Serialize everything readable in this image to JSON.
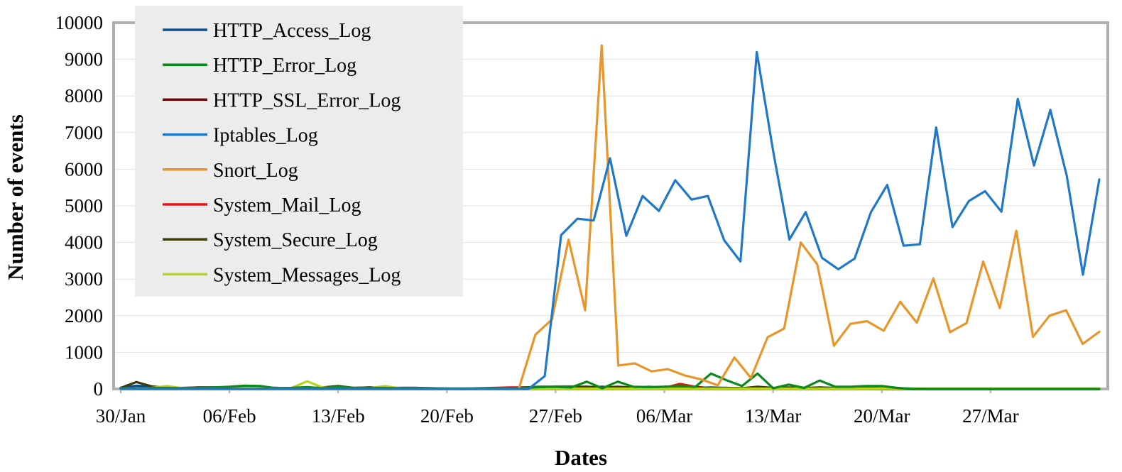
{
  "chart_data": {
    "type": "line",
    "title": "",
    "xlabel": "Dates",
    "ylabel": "Number of events",
    "ylim": [
      0,
      10000
    ],
    "yticks": [
      0,
      1000,
      2000,
      3000,
      4000,
      5000,
      6000,
      7000,
      8000,
      9000,
      10000
    ],
    "xlim": [
      "30/Jan",
      "03/Apr"
    ],
    "xticks": [
      "30/Jan",
      "06/Feb",
      "13/Feb",
      "20/Feb",
      "27/Feb",
      "06/Mar",
      "13/Mar",
      "20/Mar",
      "27/Mar"
    ],
    "x_start_day": "30/Jan",
    "grid": "horizontal",
    "legend_position": "top-left",
    "series": [
      {
        "name": "HTTP_Access_Log",
        "color": "#0b4c8c",
        "values": [
          30,
          90,
          60,
          30,
          20,
          40,
          40,
          30,
          30,
          30,
          30,
          20,
          20,
          30,
          60,
          30,
          40,
          30,
          30,
          30,
          20,
          10,
          0,
          10,
          20,
          20,
          30,
          40,
          60,
          60,
          40,
          60,
          30,
          40,
          30,
          40,
          20,
          30,
          40,
          30,
          20,
          10,
          20,
          20,
          20,
          40,
          30,
          30,
          20,
          10,
          10,
          10,
          0,
          0,
          0,
          0,
          0,
          0,
          0,
          0,
          0,
          0,
          0,
          0
        ]
      },
      {
        "name": "HTTP_Error_Log",
        "color": "#0a8a1a",
        "values": [
          20,
          20,
          30,
          30,
          20,
          30,
          40,
          60,
          90,
          80,
          20,
          30,
          50,
          20,
          60,
          30,
          30,
          30,
          20,
          20,
          10,
          10,
          10,
          10,
          20,
          20,
          30,
          50,
          60,
          40,
          200,
          20,
          200,
          60,
          50,
          60,
          80,
          60,
          420,
          240,
          80,
          420,
          20,
          120,
          30,
          230,
          60,
          60,
          80,
          80,
          30,
          0,
          0,
          0,
          0,
          0,
          0,
          0,
          0,
          0,
          0,
          0,
          0,
          0
        ]
      },
      {
        "name": "HTTP_SSL_Error_Log",
        "color": "#7a0000",
        "values": [
          10,
          10,
          10,
          10,
          10,
          10,
          10,
          10,
          10,
          10,
          10,
          10,
          10,
          10,
          10,
          10,
          10,
          10,
          10,
          10,
          10,
          10,
          10,
          10,
          10,
          10,
          10,
          10,
          10,
          10,
          10,
          10,
          10,
          10,
          10,
          10,
          10,
          10,
          10,
          10,
          10,
          10,
          10,
          10,
          10,
          10,
          10,
          10,
          10,
          10,
          10,
          10,
          10,
          10,
          10,
          10,
          10,
          10,
          10,
          10,
          10,
          10,
          10,
          10
        ]
      },
      {
        "name": "Iptables_Log",
        "color": "#1f78c8",
        "values": [
          0,
          0,
          0,
          0,
          0,
          0,
          0,
          0,
          0,
          0,
          0,
          0,
          0,
          0,
          0,
          0,
          0,
          0,
          0,
          0,
          0,
          0,
          0,
          0,
          0,
          0,
          350,
          4200,
          4650,
          4600,
          6300,
          4180,
          5270,
          4860,
          5700,
          5170,
          5270,
          4060,
          3480,
          9200,
          6500,
          4080,
          4830,
          3580,
          3270,
          3560,
          4830,
          5570,
          3910,
          3950,
          7140,
          4420,
          5130,
          5400,
          4840,
          7920,
          6100,
          7620,
          5830,
          3120,
          5720
        ]
      },
      {
        "name": "Snort_Log",
        "color": "#e8962a",
        "values": [
          0,
          0,
          0,
          0,
          0,
          0,
          0,
          0,
          0,
          0,
          0,
          0,
          0,
          0,
          0,
          0,
          0,
          0,
          0,
          0,
          0,
          0,
          0,
          0,
          0,
          1480,
          1900,
          4080,
          2150,
          9380,
          640,
          700,
          480,
          540,
          370,
          260,
          100,
          860,
          300,
          1410,
          1650,
          4000,
          3400,
          1180,
          1780,
          1850,
          1590,
          2380,
          1810,
          3020,
          1550,
          1800,
          3480,
          2210,
          4320,
          1420,
          2000,
          2150,
          1230,
          1560
        ]
      },
      {
        "name": "System_Mail_Log",
        "color": "#ee1111",
        "values": [
          10,
          20,
          30,
          20,
          10,
          20,
          20,
          10,
          30,
          20,
          10,
          20,
          10,
          20,
          30,
          20,
          10,
          20,
          10,
          10,
          10,
          10,
          10,
          20,
          30,
          40,
          40,
          20,
          20,
          30,
          60,
          30,
          40,
          30,
          60,
          30,
          140,
          60,
          20,
          10,
          10,
          50,
          20,
          10,
          10,
          20,
          10,
          10,
          10,
          0,
          0,
          0,
          0,
          0,
          0,
          0,
          0,
          0,
          0,
          0,
          0,
          0,
          0,
          0
        ]
      },
      {
        "name": "System_Secure_Log",
        "color": "#3a3a0a",
        "values": [
          30,
          190,
          70,
          30,
          30,
          40,
          40,
          30,
          30,
          30,
          30,
          20,
          20,
          40,
          80,
          30,
          40,
          30,
          30,
          30,
          20,
          10,
          0,
          10,
          20,
          20,
          40,
          60,
          60,
          60,
          60,
          40,
          60,
          40,
          30,
          60,
          80,
          40,
          20,
          30,
          20,
          60,
          30,
          40,
          30,
          40,
          20,
          30,
          20,
          10,
          10,
          0,
          0,
          0,
          0,
          0,
          0,
          0,
          0,
          0,
          0,
          0,
          0,
          0
        ]
      },
      {
        "name": "System_Messages_Log",
        "color": "#b8d418",
        "values": [
          10,
          20,
          30,
          80,
          20,
          20,
          20,
          20,
          30,
          40,
          20,
          30,
          210,
          40,
          20,
          30,
          20,
          80,
          20,
          20,
          10,
          10,
          10,
          10,
          10,
          10,
          10,
          10,
          10,
          10,
          10,
          10,
          10,
          10,
          10,
          10,
          10,
          10,
          10,
          10,
          10,
          10,
          10,
          10,
          10,
          10,
          10,
          10,
          10,
          10,
          10,
          10,
          10,
          10,
          10,
          10,
          10,
          10,
          10,
          10,
          10,
          10,
          10,
          10
        ]
      }
    ]
  }
}
